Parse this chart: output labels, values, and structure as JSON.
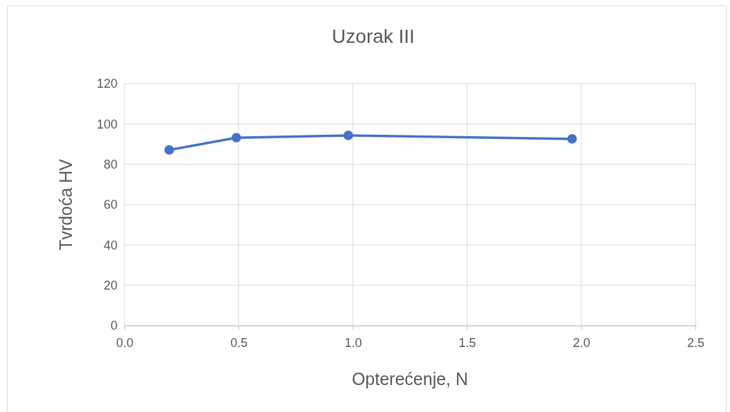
{
  "chart_data": {
    "type": "line",
    "title": "Uzorak III",
    "xlabel": "Opterećenje, N",
    "ylabel": "Tvrdoća HV",
    "x": [
      0.196,
      0.49,
      0.98,
      1.96
    ],
    "series": [
      {
        "color": "#4472c4",
        "values": [
          87.1,
          93.2,
          94.3,
          92.6
        ]
      }
    ],
    "xlim": [
      0,
      2.5
    ],
    "xticks": [
      {
        "value": 0,
        "label": "0.0"
      },
      {
        "value": 0.5,
        "label": "0.5"
      },
      {
        "value": 1,
        "label": "1.0"
      },
      {
        "value": 1.5,
        "label": "1.5"
      },
      {
        "value": 2,
        "label": "2.0"
      },
      {
        "value": 2.5,
        "label": "2.5"
      }
    ],
    "ylim": [
      0,
      120
    ],
    "yticks": [
      0,
      20,
      40,
      60,
      80,
      100,
      120
    ],
    "grid": true,
    "marker": "circle",
    "line_style": "solid"
  }
}
